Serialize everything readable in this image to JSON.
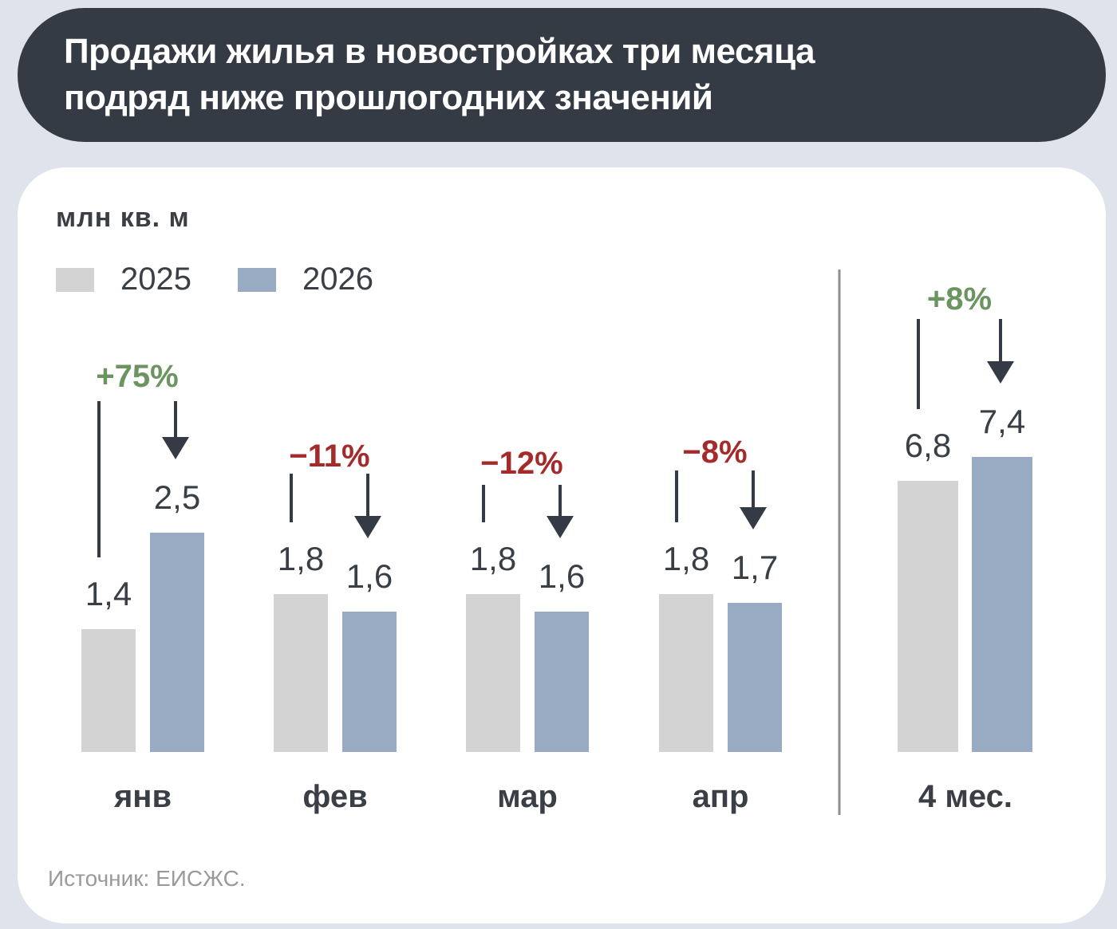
{
  "title": {
    "line1": "Продажи жилья в новостройках три месяца",
    "line2": "подряд ниже прошлогодних значений"
  },
  "unit": "млн кв. м",
  "legend": [
    {
      "label": "2025",
      "color": "#d3d3d3"
    },
    {
      "label": "2026",
      "color": "#98abc2"
    }
  ],
  "source": "Источник: ЕИСЖС.",
  "colors": {
    "positive": "#6c9460",
    "negative": "#a52a2a",
    "arrow": "#353b44",
    "divider": "#8e8e8e"
  },
  "chart_data": {
    "type": "bar",
    "title": "Продажи жилья в новостройках три месяца подряд ниже прошлогодних значений",
    "ylabel": "млн кв. м",
    "grid": false,
    "legend_position": "top-left",
    "series": [
      {
        "name": "2025",
        "values": [
          1.4,
          1.8,
          1.8,
          1.8
        ],
        "labels": [
          "1,4",
          "1,8",
          "1,8",
          "1,8"
        ]
      },
      {
        "name": "2026",
        "values": [
          2.5,
          1.6,
          1.6,
          1.7
        ],
        "labels": [
          "2,5",
          "1,6",
          "1,6",
          "1,7"
        ]
      }
    ],
    "categories": [
      "янв",
      "фев",
      "мар",
      "апр"
    ],
    "changes": [
      "+75%",
      "−11%",
      "−12%",
      "−8%"
    ],
    "total": {
      "category": "4 мес.",
      "values": [
        6.8,
        7.4
      ],
      "labels": [
        "6,8",
        "7,4"
      ],
      "change": "+8%"
    }
  }
}
